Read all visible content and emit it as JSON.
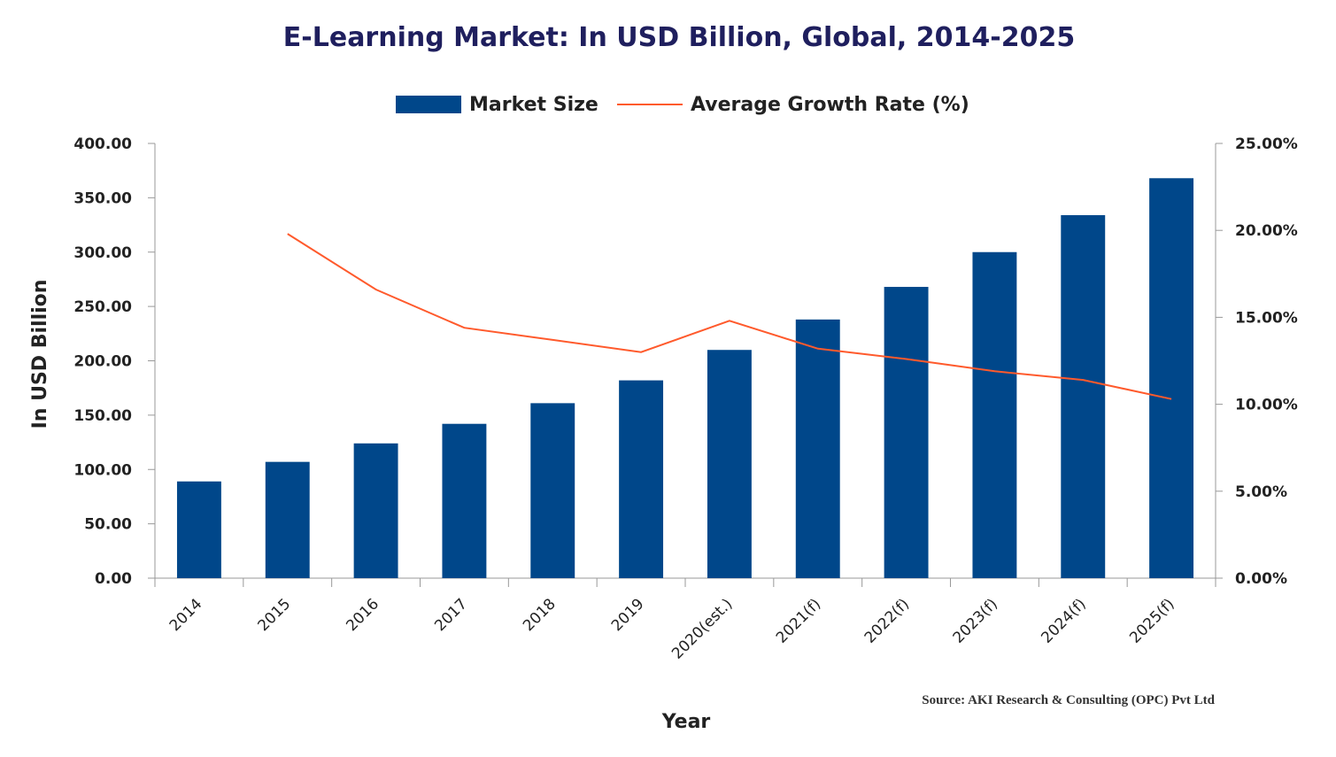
{
  "chart_data": {
    "type": "bar",
    "title": "E-Learning Market: In USD Billion, Global, 2014-2025",
    "xlabel": "Year",
    "ylabel": "In USD Billion",
    "categories": [
      "2014",
      "2015",
      "2016",
      "2017",
      "2018",
      "2019",
      "2020(est.)",
      "2021(f)",
      "2022(f)",
      "2023(f)",
      "2024(f)",
      "2025(f)"
    ],
    "series": [
      {
        "name": "Market Size",
        "type": "bar",
        "axis": "left",
        "values": [
          89,
          107,
          124,
          142,
          161,
          182,
          210,
          238,
          268,
          300,
          334,
          368
        ]
      },
      {
        "name": "Average Growth Rate (%)",
        "type": "line",
        "axis": "right",
        "values": [
          null,
          19.8,
          16.6,
          14.4,
          13.7,
          13.0,
          14.8,
          13.2,
          12.6,
          11.9,
          11.4,
          10.3
        ]
      }
    ],
    "ylim": [
      0,
      400
    ],
    "yticks": [
      "0.00",
      "50.00",
      "100.00",
      "150.00",
      "200.00",
      "250.00",
      "300.00",
      "350.00",
      "400.00"
    ],
    "y2lim": [
      0,
      25
    ],
    "y2ticks": [
      "0.00%",
      "5.00%",
      "10.00%",
      "15.00%",
      "20.00%",
      "25.00%"
    ],
    "grid": false,
    "legend_position": "top-center",
    "source": "Source: AKI Research & Consulting (OPC) Pvt Ltd",
    "colors": {
      "bar": "#00478a",
      "line": "#ff5a2c",
      "title": "#1f1f5e"
    }
  }
}
